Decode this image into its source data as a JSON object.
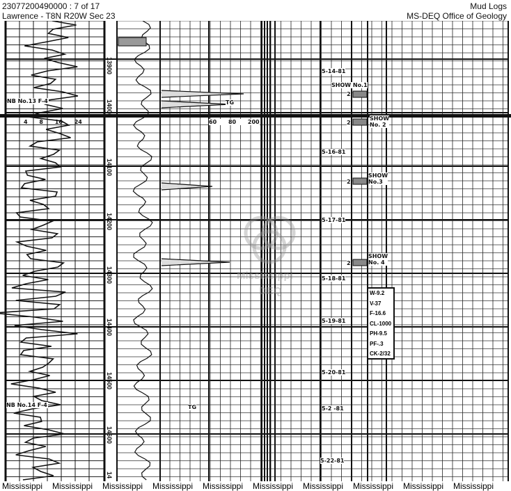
{
  "header": {
    "doc_id": "23077200490000 : 7 of 17",
    "location": "Lawrence - T8N R20W Sec 23",
    "doc_type": "Mud Logs",
    "agency": "MS-DEQ Office of Geology"
  },
  "depths": [
    "13900",
    "14000",
    "14100",
    "14200",
    "14300",
    "14400",
    "14500",
    "14600",
    "14"
  ],
  "dates": [
    "5-14-81",
    "5-16-81",
    "5-17-81",
    "5-18-81",
    "5-19-81",
    "5-20-81",
    "5-2 -81",
    "5-22-81"
  ],
  "shows": [
    {
      "label": "SHOW No.1",
      "rating": "2"
    },
    {
      "label": "SHOW No. 2",
      "rating": "2"
    },
    {
      "label": "SHOW No.3",
      "rating": "2"
    },
    {
      "label": "SHOW No. 4",
      "rating": "2"
    }
  ],
  "scales": {
    "left": [
      "4",
      "8",
      "16",
      "24"
    ],
    "gas": [
      "60",
      "80",
      "200"
    ]
  },
  "annotations": {
    "tg1": "TG",
    "tg2": "TG",
    "bit1": "NB No.13 F-4",
    "bit2": "NB No.14 F-4"
  },
  "mud_properties": [
    "W-9.2",
    "V-37",
    "F-16.6",
    "CL-1000",
    "PH-9.5",
    "PF-.3",
    "CK-2/32"
  ],
  "watermark": {
    "line1": "Mississippi",
    "line2": "DEQ"
  },
  "footer": [
    "Mississippi",
    "Mississippi",
    "Mississippi",
    "Mississippi",
    "Mississippi",
    "Mississippi",
    "Mississippi",
    "Mississippi",
    "Mississippi",
    "Mississippi"
  ]
}
